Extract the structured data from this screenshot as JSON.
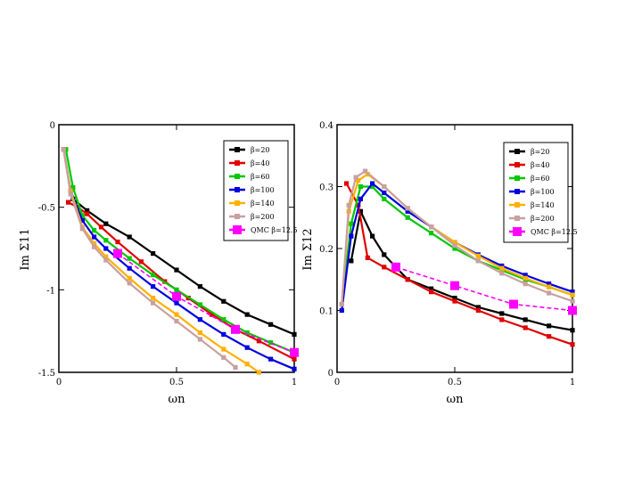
{
  "chart_data": [
    {
      "type": "line",
      "panel": "left",
      "ylabel": "Im Σ11",
      "xlabel": "ωn",
      "xlim": [
        0,
        1
      ],
      "ylim": [
        -1.5,
        0
      ],
      "xticks": [
        0,
        0.5,
        1
      ],
      "yticks": [
        0,
        -0.5,
        -1,
        -1.5
      ],
      "xtick_labels": [
        "0",
        "0.5",
        "1"
      ],
      "ytick_labels": [
        "0",
        "-0.5",
        "-1",
        "-1.5"
      ],
      "legend_position": "top-right",
      "series": [
        {
          "name": "β=20",
          "color": "#000000",
          "x": [
            0.06,
            0.12,
            0.2,
            0.3,
            0.4,
            0.5,
            0.6,
            0.7,
            0.8,
            0.9,
            1.0
          ],
          "y": [
            -0.45,
            -0.52,
            -0.6,
            -0.68,
            -0.78,
            -0.88,
            -0.98,
            -1.07,
            -1.15,
            -1.21,
            -1.27
          ]
        },
        {
          "name": "β=40",
          "color": "#e00000",
          "x": [
            0.04,
            0.08,
            0.12,
            0.18,
            0.25,
            0.35,
            0.45,
            0.55,
            0.65,
            0.75,
            0.85,
            1.0
          ],
          "y": [
            -0.47,
            -0.5,
            -0.54,
            -0.62,
            -0.71,
            -0.83,
            -0.95,
            -1.05,
            -1.15,
            -1.24,
            -1.31,
            -1.42
          ]
        },
        {
          "name": "β=60",
          "color": "#00c800",
          "x": [
            0.03,
            0.06,
            0.1,
            0.15,
            0.2,
            0.3,
            0.4,
            0.5,
            0.6,
            0.7,
            0.8,
            0.9,
            1.0
          ],
          "y": [
            -0.15,
            -0.38,
            -0.55,
            -0.64,
            -0.7,
            -0.81,
            -0.91,
            -1.0,
            -1.09,
            -1.18,
            -1.26,
            -1.32,
            -1.38
          ]
        },
        {
          "name": "β=100",
          "color": "#0000e0",
          "x": [
            0.02,
            0.05,
            0.1,
            0.15,
            0.2,
            0.3,
            0.4,
            0.5,
            0.6,
            0.7,
            0.8,
            0.9,
            1.0
          ],
          "y": [
            -0.15,
            -0.4,
            -0.58,
            -0.68,
            -0.75,
            -0.87,
            -0.98,
            -1.08,
            -1.18,
            -1.27,
            -1.35,
            -1.42,
            -1.48
          ]
        },
        {
          "name": "β=140",
          "color": "#ffb000",
          "x": [
            0.02,
            0.05,
            0.1,
            0.15,
            0.2,
            0.3,
            0.4,
            0.5,
            0.6,
            0.7,
            0.8,
            0.85
          ],
          "y": [
            -0.15,
            -0.4,
            -0.62,
            -0.72,
            -0.8,
            -0.93,
            -1.05,
            -1.15,
            -1.26,
            -1.36,
            -1.45,
            -1.5
          ]
        },
        {
          "name": "β=200",
          "color": "#c8a0a0",
          "x": [
            0.02,
            0.05,
            0.1,
            0.15,
            0.2,
            0.3,
            0.4,
            0.5,
            0.6,
            0.7,
            0.75
          ],
          "y": [
            -0.15,
            -0.42,
            -0.63,
            -0.74,
            -0.82,
            -0.96,
            -1.08,
            -1.19,
            -1.3,
            -1.41,
            -1.47
          ]
        },
        {
          "name": "QMC β=12.5",
          "color": "#ff00ff",
          "x": [
            0.25,
            0.5,
            0.75,
            1.0
          ],
          "y": [
            -0.78,
            -1.04,
            -1.24,
            -1.38
          ]
        }
      ]
    },
    {
      "type": "line",
      "panel": "right",
      "ylabel": "Im Σ12",
      "xlabel": "ωn",
      "xlim": [
        0,
        1
      ],
      "ylim": [
        0,
        0.4
      ],
      "xticks": [
        0,
        0.5,
        1
      ],
      "yticks": [
        0,
        0.1,
        0.2,
        0.3,
        0.4
      ],
      "xtick_labels": [
        "0",
        "0.5",
        "1"
      ],
      "ytick_labels": [
        "0",
        "0.1",
        "0.2",
        "0.3",
        "0.4"
      ],
      "legend_position": "top-right",
      "series": [
        {
          "name": "β=20",
          "color": "#000000",
          "x": [
            0.06,
            0.1,
            0.15,
            0.2,
            0.3,
            0.4,
            0.5,
            0.6,
            0.7,
            0.8,
            0.9,
            1.0
          ],
          "y": [
            0.18,
            0.26,
            0.22,
            0.19,
            0.15,
            0.135,
            0.12,
            0.105,
            0.095,
            0.085,
            0.075,
            0.068
          ]
        },
        {
          "name": "β=40",
          "color": "#e00000",
          "x": [
            0.04,
            0.09,
            0.13,
            0.2,
            0.3,
            0.4,
            0.5,
            0.6,
            0.7,
            0.8,
            0.9,
            1.0
          ],
          "y": [
            0.305,
            0.27,
            0.185,
            0.17,
            0.15,
            0.13,
            0.115,
            0.1,
            0.085,
            0.072,
            0.058,
            0.045
          ]
        },
        {
          "name": "β=60",
          "color": "#00c800",
          "x": [
            0.02,
            0.06,
            0.1,
            0.15,
            0.2,
            0.3,
            0.4,
            0.5,
            0.6,
            0.7,
            0.8,
            0.9,
            1.0
          ],
          "y": [
            0.11,
            0.24,
            0.3,
            0.3,
            0.28,
            0.25,
            0.225,
            0.2,
            0.18,
            0.165,
            0.15,
            0.138,
            0.125
          ]
        },
        {
          "name": "β=100",
          "color": "#0000e0",
          "x": [
            0.02,
            0.06,
            0.1,
            0.15,
            0.2,
            0.3,
            0.4,
            0.5,
            0.6,
            0.7,
            0.8,
            0.9,
            1.0
          ],
          "y": [
            0.1,
            0.22,
            0.28,
            0.305,
            0.29,
            0.26,
            0.235,
            0.21,
            0.19,
            0.172,
            0.157,
            0.143,
            0.13
          ]
        },
        {
          "name": "β=140",
          "color": "#ffb000",
          "x": [
            0.02,
            0.05,
            0.09,
            0.13,
            0.2,
            0.3,
            0.4,
            0.5,
            0.6,
            0.7,
            0.8,
            0.9,
            1.0
          ],
          "y": [
            0.11,
            0.26,
            0.31,
            0.32,
            0.3,
            0.265,
            0.235,
            0.21,
            0.188,
            0.168,
            0.152,
            0.138,
            0.125
          ]
        },
        {
          "name": "β=200",
          "color": "#c8a0a0",
          "x": [
            0.02,
            0.05,
            0.08,
            0.12,
            0.2,
            0.3,
            0.4,
            0.5,
            0.6,
            0.7,
            0.8,
            0.9,
            1.0
          ],
          "y": [
            0.11,
            0.27,
            0.315,
            0.325,
            0.3,
            0.265,
            0.235,
            0.205,
            0.18,
            0.16,
            0.143,
            0.128,
            0.115
          ]
        },
        {
          "name": "QMC β=12.5",
          "color": "#ff00ff",
          "x": [
            0.25,
            0.5,
            0.75,
            1.0
          ],
          "y": [
            0.17,
            0.14,
            0.11,
            0.1
          ]
        }
      ]
    }
  ]
}
